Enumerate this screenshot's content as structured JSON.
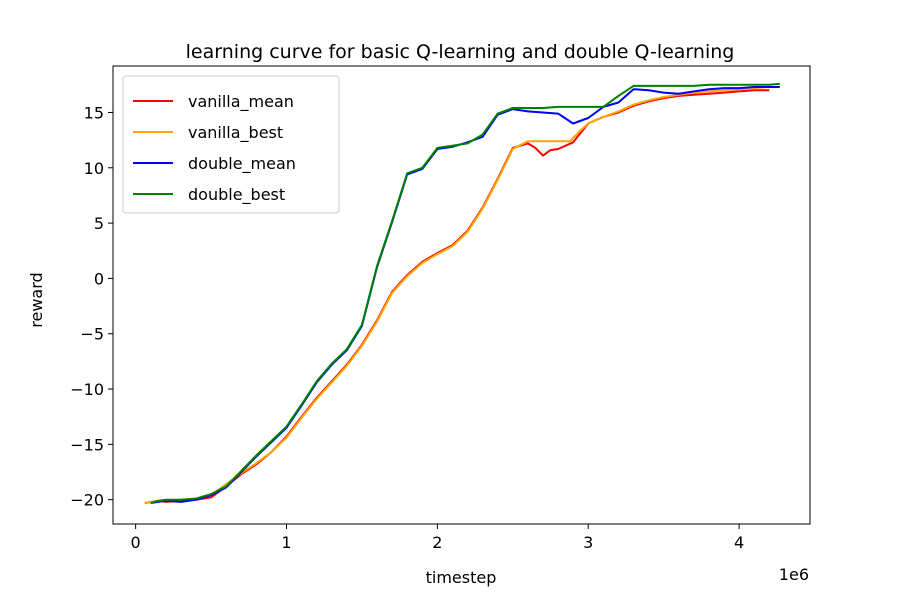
{
  "chart_data": {
    "type": "line",
    "title": "learning curve for basic Q-learning and double Q-learning",
    "xlabel": "timestep",
    "ylabel": "reward",
    "x_offset_label": "1e6",
    "xlim": [
      -0.15,
      4.47
    ],
    "ylim": [
      -22.2,
      19.2
    ],
    "x_ticks": [
      0,
      1,
      2,
      3,
      4
    ],
    "x_tick_labels": [
      "0",
      "1",
      "2",
      "3",
      "4"
    ],
    "y_ticks": [
      -20,
      -15,
      -10,
      -5,
      0,
      5,
      10,
      15
    ],
    "y_tick_labels": [
      "−20",
      "−15",
      "−10",
      "−5",
      "0",
      "5",
      "10",
      "15"
    ],
    "grid": false,
    "legend_position": "top-left",
    "series": [
      {
        "name": "vanilla_mean",
        "color": "#ff0000",
        "x": [
          0.06,
          0.15,
          0.2,
          0.3,
          0.4,
          0.5,
          0.6,
          0.7,
          0.8,
          0.9,
          1.0,
          1.1,
          1.2,
          1.3,
          1.4,
          1.5,
          1.6,
          1.7,
          1.8,
          1.9,
          2.0,
          2.1,
          2.2,
          2.3,
          2.4,
          2.5,
          2.6,
          2.65,
          2.7,
          2.75,
          2.8,
          2.9,
          3.0,
          3.1,
          3.2,
          3.3,
          3.4,
          3.5,
          3.6,
          3.7,
          3.8,
          3.9,
          4.0,
          4.1,
          4.2
        ],
        "y": [
          -20.3,
          -20.1,
          -20.2,
          -20.1,
          -20.0,
          -19.8,
          -18.8,
          -17.7,
          -16.8,
          -15.7,
          -14.3,
          -12.5,
          -10.8,
          -9.3,
          -7.8,
          -6.0,
          -3.8,
          -1.2,
          0.3,
          1.5,
          2.3,
          3.0,
          4.3,
          6.4,
          9.0,
          11.8,
          12.2,
          11.8,
          11.1,
          11.6,
          11.7,
          12.3,
          14.0,
          14.6,
          15.0,
          15.6,
          16.0,
          16.3,
          16.5,
          16.6,
          16.7,
          16.8,
          16.9,
          17.0,
          17.0
        ]
      },
      {
        "name": "vanilla_best",
        "color": "#ffa500",
        "x": [
          0.06,
          0.15,
          0.2,
          0.3,
          0.4,
          0.5,
          0.6,
          0.7,
          0.8,
          0.9,
          1.0,
          1.1,
          1.2,
          1.3,
          1.4,
          1.5,
          1.6,
          1.7,
          1.8,
          1.9,
          2.0,
          2.1,
          2.2,
          2.3,
          2.4,
          2.5,
          2.6,
          2.65,
          2.75,
          2.88,
          2.95,
          3.0,
          3.1,
          3.2,
          3.3,
          3.4,
          3.5,
          3.6,
          3.7,
          3.8,
          3.9,
          4.0,
          4.1,
          4.2
        ],
        "y": [
          -20.3,
          -20.1,
          -20.1,
          -20.0,
          -19.9,
          -19.6,
          -18.6,
          -17.6,
          -16.7,
          -15.7,
          -14.4,
          -12.6,
          -10.9,
          -9.4,
          -7.9,
          -6.1,
          -3.9,
          -1.3,
          0.2,
          1.4,
          2.2,
          2.9,
          4.2,
          6.3,
          8.9,
          11.7,
          12.4,
          12.4,
          12.4,
          12.4,
          13.4,
          14.0,
          14.6,
          15.1,
          15.7,
          16.1,
          16.4,
          16.6,
          16.8,
          16.9,
          17.0,
          17.1,
          17.2,
          17.3
        ]
      },
      {
        "name": "double_mean",
        "color": "#0000ff",
        "x": [
          0.1,
          0.15,
          0.2,
          0.3,
          0.4,
          0.5,
          0.6,
          0.7,
          0.8,
          0.9,
          1.0,
          1.1,
          1.2,
          1.3,
          1.4,
          1.5,
          1.6,
          1.7,
          1.8,
          1.9,
          2.0,
          2.1,
          2.2,
          2.3,
          2.4,
          2.5,
          2.6,
          2.7,
          2.8,
          2.9,
          3.0,
          3.1,
          3.2,
          3.3,
          3.4,
          3.5,
          3.6,
          3.7,
          3.8,
          3.9,
          4.0,
          4.1,
          4.2,
          4.27
        ],
        "y": [
          -20.3,
          -20.2,
          -20.1,
          -20.2,
          -20.0,
          -19.6,
          -18.9,
          -17.5,
          -16.1,
          -14.8,
          -13.5,
          -11.5,
          -9.4,
          -7.8,
          -6.5,
          -4.3,
          1.0,
          5.1,
          9.4,
          9.9,
          11.7,
          11.9,
          12.3,
          12.8,
          14.8,
          15.3,
          15.1,
          15.0,
          14.9,
          14.0,
          14.5,
          15.5,
          15.9,
          17.1,
          17.0,
          16.8,
          16.7,
          16.9,
          17.1,
          17.2,
          17.2,
          17.3,
          17.3,
          17.3
        ]
      },
      {
        "name": "double_best",
        "color": "#008000",
        "x": [
          0.1,
          0.15,
          0.2,
          0.3,
          0.4,
          0.5,
          0.6,
          0.7,
          0.8,
          0.9,
          1.0,
          1.1,
          1.2,
          1.3,
          1.4,
          1.5,
          1.6,
          1.7,
          1.8,
          1.9,
          2.0,
          2.1,
          2.2,
          2.3,
          2.4,
          2.5,
          2.6,
          2.7,
          2.8,
          2.9,
          3.0,
          3.1,
          3.2,
          3.3,
          3.4,
          3.5,
          3.6,
          3.7,
          3.8,
          3.9,
          4.0,
          4.1,
          4.2,
          4.27
        ],
        "y": [
          -20.3,
          -20.1,
          -20.0,
          -20.0,
          -19.9,
          -19.5,
          -18.8,
          -17.4,
          -16.0,
          -14.7,
          -13.4,
          -11.4,
          -9.3,
          -7.7,
          -6.4,
          -4.2,
          1.1,
          5.2,
          9.5,
          10.0,
          11.8,
          12.0,
          12.2,
          13.0,
          14.9,
          15.4,
          15.4,
          15.4,
          15.5,
          15.5,
          15.5,
          15.5,
          16.5,
          17.4,
          17.4,
          17.4,
          17.4,
          17.4,
          17.5,
          17.5,
          17.5,
          17.5,
          17.5,
          17.6
        ]
      }
    ]
  }
}
